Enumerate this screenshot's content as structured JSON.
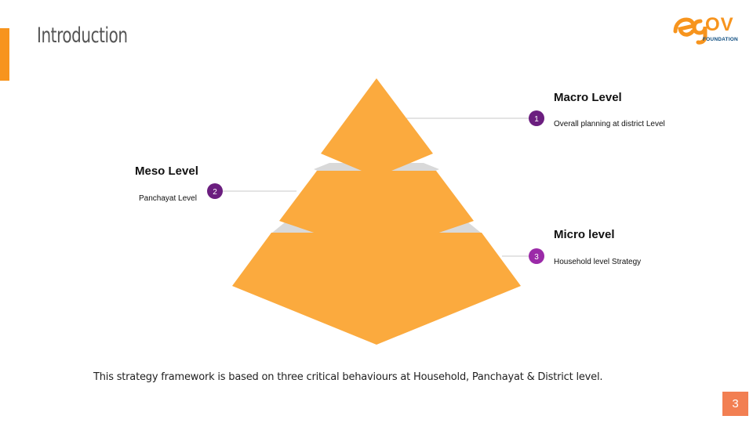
{
  "header": {
    "title": "Introduction"
  },
  "logo": {
    "wordmark": "OV",
    "subtitle": "FOUNDATION"
  },
  "pyramid": {
    "levels": [
      {
        "number": "1",
        "title": "Macro Level",
        "description": "Overall planning at district Level"
      },
      {
        "number": "2",
        "title": "Meso Level",
        "description": "Panchayat Level"
      },
      {
        "number": "3",
        "title": "Micro level",
        "description": "Household level Strategy"
      }
    ]
  },
  "footer": {
    "text": "This strategy framework is based on three critical behaviours at Household, Panchayat & District level."
  },
  "page": {
    "number": "3"
  },
  "colors": {
    "accent": "#f7941d",
    "pyramid_face": "#fbaa3e",
    "pyramid_gap": "#d9d9d9",
    "badge_dark": "#6b1e7f",
    "badge_light": "#9b2aa8",
    "page_badge": "#f27f52",
    "logo_blue": "#0b4b7f"
  }
}
